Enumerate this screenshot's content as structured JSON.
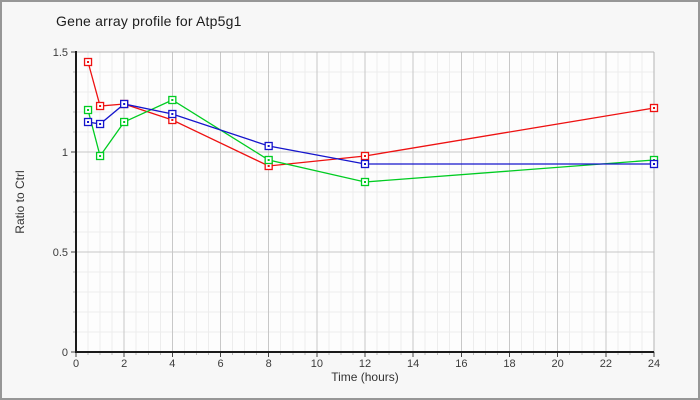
{
  "window": {
    "title": "Gene array profile for Atp5g1"
  },
  "chart_data": {
    "type": "line",
    "title": "Gene array profile for Atp5g1",
    "xlabel": "Time (hours)",
    "ylabel": "Ratio to Ctrl",
    "x": [
      0.5,
      1,
      2,
      4,
      8,
      12,
      24
    ],
    "series": [
      {
        "name": "red-series",
        "color": "#ee1111",
        "values": [
          1.45,
          1.23,
          1.24,
          1.16,
          0.93,
          0.98,
          1.22
        ]
      },
      {
        "name": "green-series",
        "color": "#00cc22",
        "values": [
          1.21,
          0.98,
          1.15,
          1.26,
          0.96,
          0.85,
          0.96
        ]
      },
      {
        "name": "blue-series",
        "color": "#1515cc",
        "values": [
          1.15,
          1.14,
          1.24,
          1.19,
          1.03,
          0.94,
          0.94
        ]
      }
    ],
    "xlim": [
      0,
      24
    ],
    "ylim": [
      0,
      1.5
    ],
    "x_major_ticks": [
      0,
      2,
      4,
      6,
      8,
      10,
      12,
      14,
      16,
      18,
      20,
      22,
      24
    ],
    "x_tick_labels": [
      "0",
      "2",
      "4",
      "6",
      "8",
      "10",
      "12",
      "14",
      "16",
      "18",
      "20",
      "22",
      "24"
    ],
    "y_major_ticks": [
      0,
      0.5,
      1,
      1.5
    ],
    "y_tick_labels": [
      "0",
      "0.5",
      "1",
      "1.5"
    ],
    "x_minor_step": 0.5,
    "y_minor_step": 0.1,
    "grid": true,
    "legend": "none",
    "marker": "open-square-with-dot",
    "colors": {
      "plot_background": "#fdfdfd",
      "outer_background": "#f7f7f7",
      "minor_grid": "#ededed",
      "major_grid": "#c8c8c8",
      "frame": "#b4b4b4",
      "axis": "#1a1a1a",
      "tick_text": "#3c3c3c"
    }
  }
}
